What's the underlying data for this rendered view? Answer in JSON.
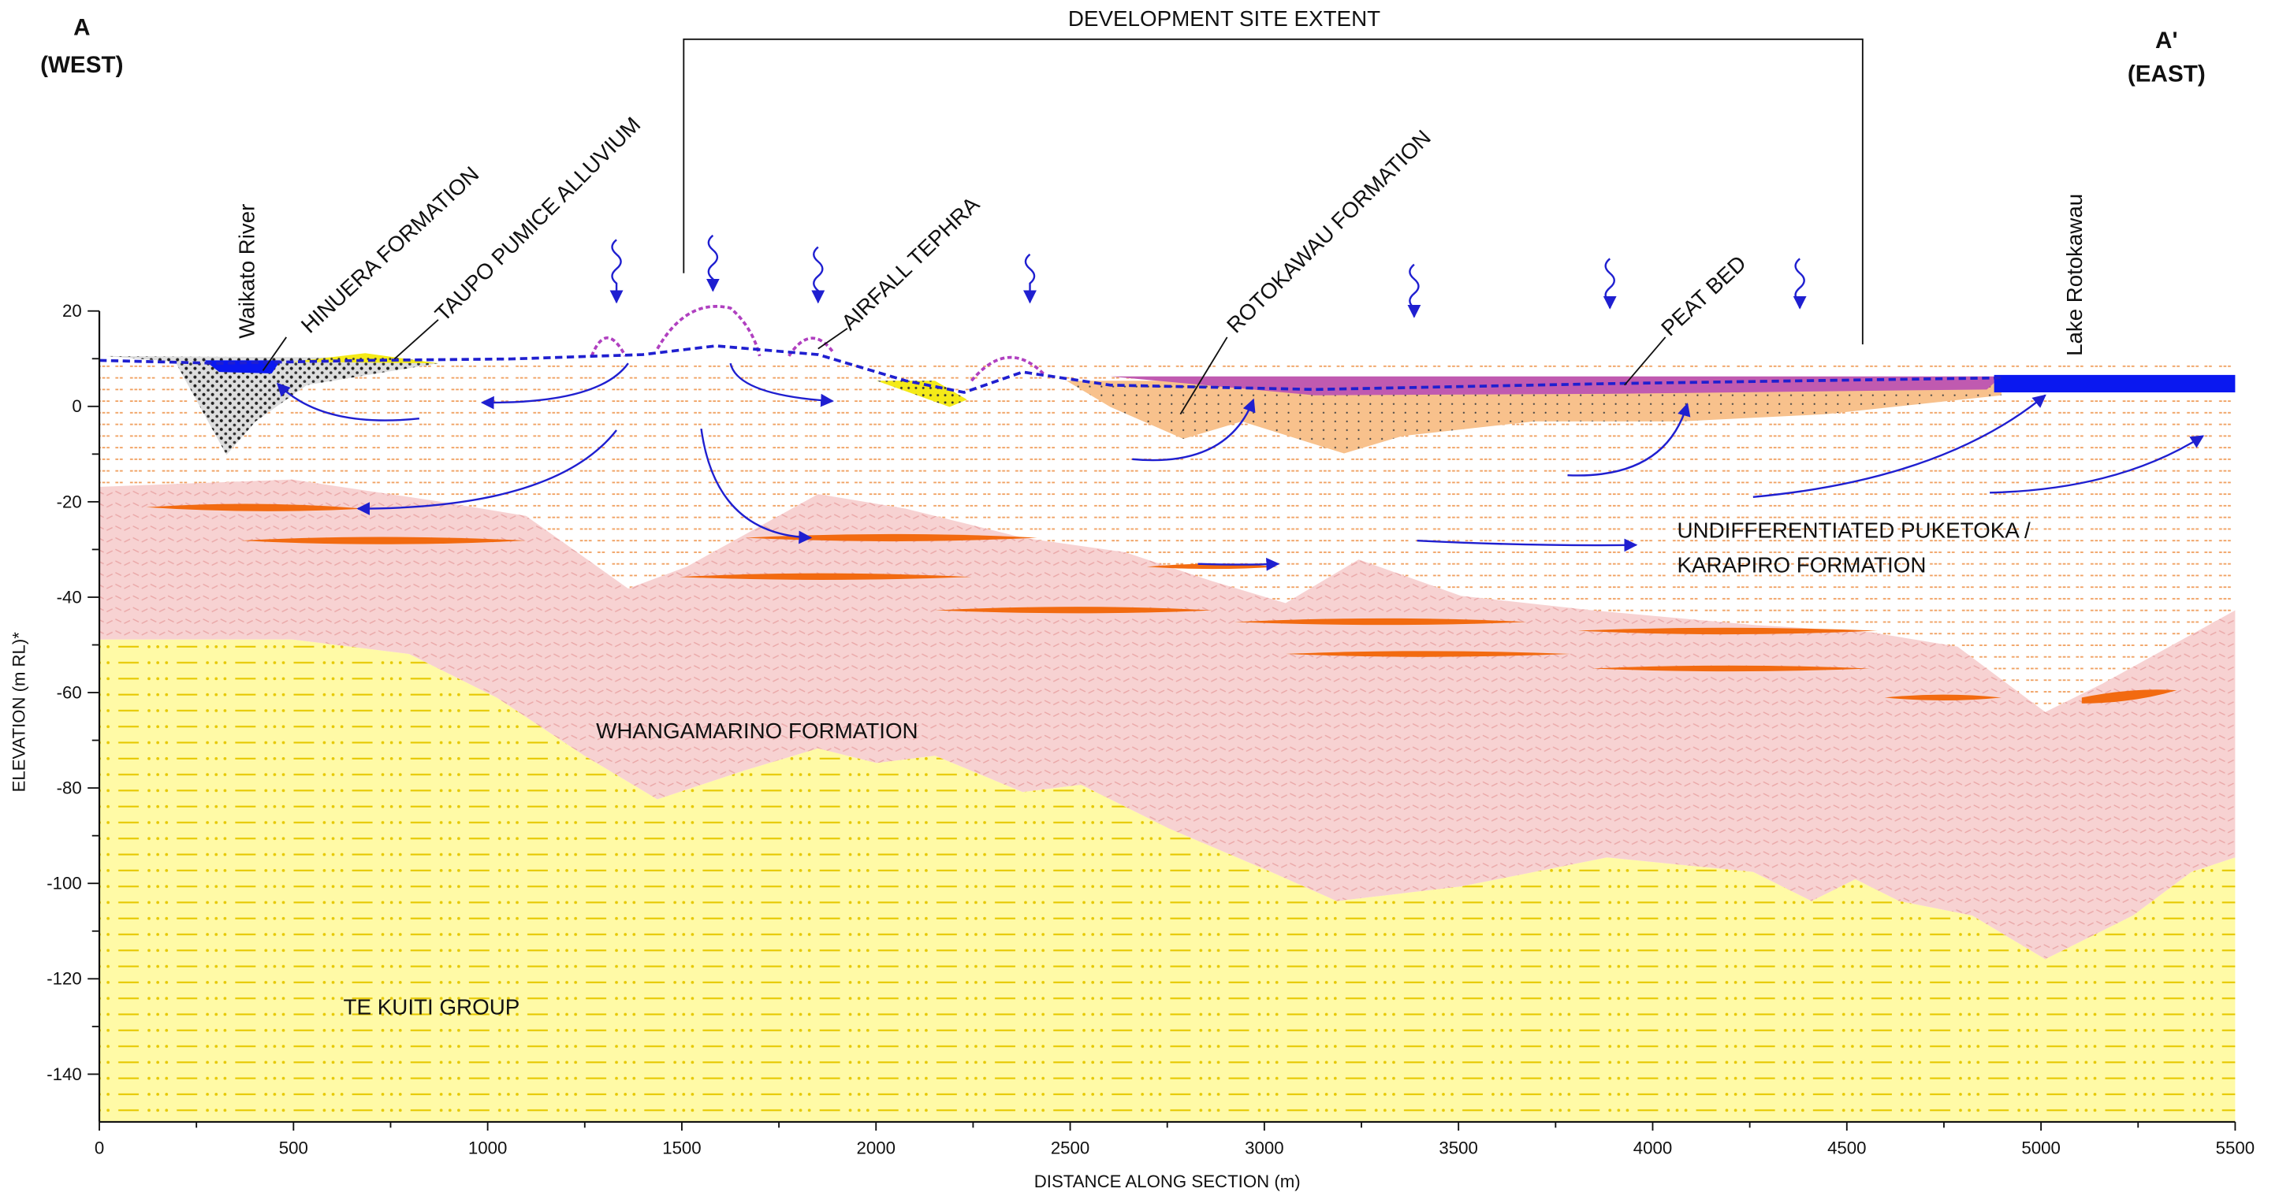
{
  "header": {
    "left": {
      "letter": "A",
      "direction": "(WEST)"
    },
    "right": {
      "letter": "A'",
      "direction": "(EAST)"
    },
    "site_extent": "DEVELOPMENT SITE EXTENT"
  },
  "axes": {
    "x": {
      "label": "DISTANCE ALONG SECTION (m)",
      "range": [
        0,
        5500
      ],
      "ticks": [
        0,
        500,
        1000,
        1500,
        2000,
        2500,
        3000,
        3500,
        4000,
        4500,
        5000,
        5500
      ]
    },
    "y": {
      "label": "ELEVATION (m RL)*",
      "range": [
        -150,
        20
      ],
      "ticks": [
        20,
        0,
        -20,
        -40,
        -60,
        -80,
        -100,
        -120,
        -140
      ]
    }
  },
  "labels": [
    "Waikato River",
    "HINUERA FORMATION",
    "TAUPO PUMICE ALLUVIUM",
    "AIRFALL TEPHRA",
    "ROTOKAWAU FORMATION",
    "PEAT BED",
    "Lake Rotokawau",
    "UNDIFFERENTIATED PUKETOKA /",
    "KARAPIRO FORMATION",
    "WHANGAMARINO FORMATION",
    "TE KUITI GROUP"
  ]
}
